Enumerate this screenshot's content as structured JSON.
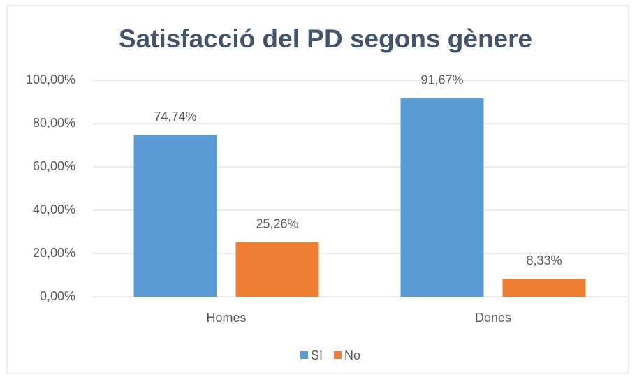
{
  "chart_data": {
    "type": "bar",
    "title": "Satisfacció del PD segons gènere",
    "categories": [
      "Homes",
      "Dones"
    ],
    "series": [
      {
        "name": "SI",
        "color": "#5b9bd5",
        "values": [
          74.74,
          91.67
        ],
        "value_labels": [
          "74,74%",
          "91,67%"
        ]
      },
      {
        "name": "No",
        "color": "#ed7d31",
        "values": [
          25.26,
          8.33
        ],
        "value_labels": [
          "25,26%",
          "8,33%"
        ]
      }
    ],
    "ylim": [
      0,
      100
    ],
    "yticks": [
      {
        "value": 0,
        "label": "0,00%"
      },
      {
        "value": 20,
        "label": "20,00%"
      },
      {
        "value": 40,
        "label": "40,00%"
      },
      {
        "value": 60,
        "label": "60,00%"
      },
      {
        "value": 80,
        "label": "80,00%"
      },
      {
        "value": 100,
        "label": "100,00%"
      }
    ],
    "grid": true,
    "legend": "bottom"
  }
}
